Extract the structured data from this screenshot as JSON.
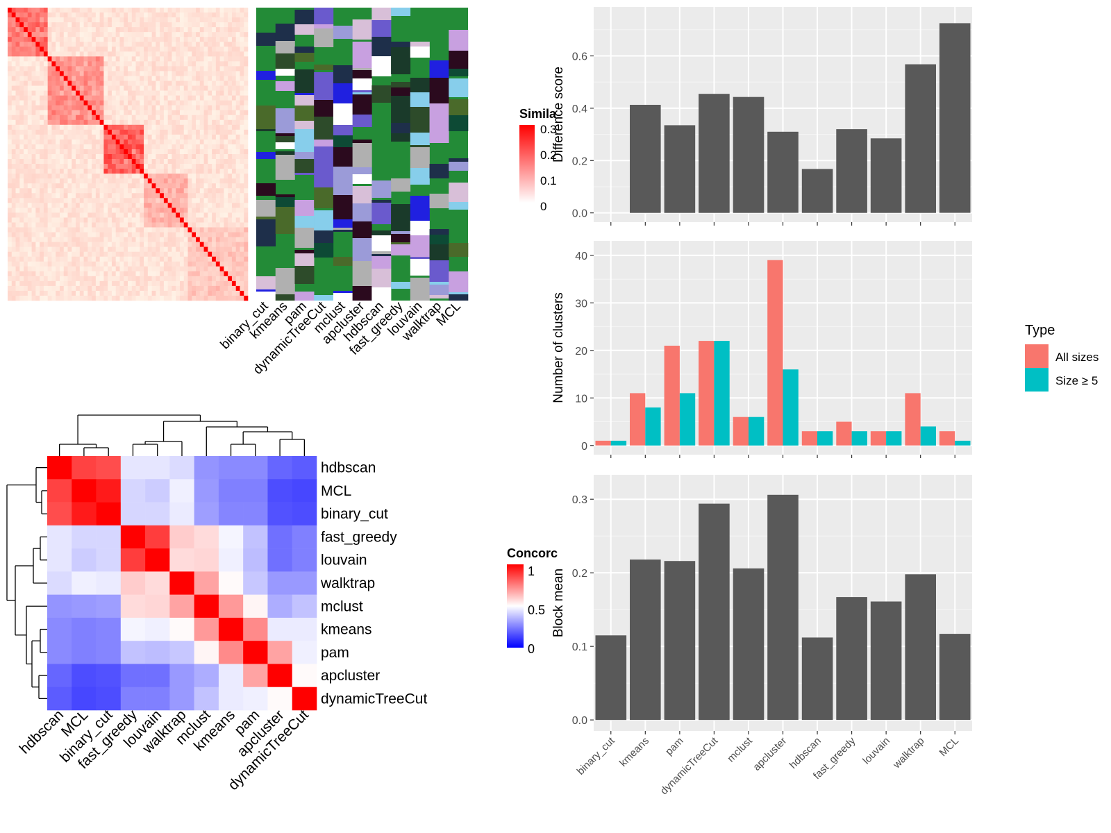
{
  "colors": {
    "panel_bg": "#ebebeb",
    "grid": "#ffffff",
    "bar_gray": "#595959",
    "all_sizes": "#f8766d",
    "size_ge5": "#00bfc4",
    "sim_high": "#ff0000",
    "conc_low": "#0000ff",
    "conc_high": "#ff0000",
    "track_bg": "#238b37"
  },
  "similarity_heatmap": {
    "legend_title": "Simila",
    "legend_ticks": [
      "0.3",
      "0.2",
      "0.1",
      "0"
    ]
  },
  "cluster_tracks": {
    "labels": [
      "binary_cut",
      "kmeans",
      "pam",
      "dynamicTreeCut",
      "mclust",
      "apcluster",
      "hdbscan",
      "fast_greedy",
      "louvain",
      "walktrap",
      "MCL"
    ]
  },
  "concordance_heatmap": {
    "legend_title": "Concorc",
    "legend_ticks": [
      "1",
      "0.5",
      "0"
    ],
    "row_labels": [
      "hdbscan",
      "MCL",
      "binary_cut",
      "fast_greedy",
      "louvain",
      "walktrap",
      "mclust",
      "kmeans",
      "pam",
      "apcluster",
      "dynamicTreeCut"
    ],
    "col_labels": [
      "hdbscan",
      "MCL",
      "binary_cut",
      "fast_greedy",
      "louvain",
      "walktrap",
      "mclust",
      "kmeans",
      "pam",
      "apcluster",
      "dynamicTreeCut"
    ],
    "matrix": [
      [
        1.0,
        0.87,
        0.85,
        0.45,
        0.45,
        0.43,
        0.29,
        0.27,
        0.27,
        0.2,
        0.18
      ],
      [
        0.87,
        1.0,
        0.95,
        0.42,
        0.4,
        0.47,
        0.3,
        0.25,
        0.25,
        0.15,
        0.14
      ],
      [
        0.85,
        0.95,
        1.0,
        0.42,
        0.42,
        0.46,
        0.31,
        0.26,
        0.26,
        0.16,
        0.15
      ],
      [
        0.45,
        0.42,
        0.42,
        1.0,
        0.88,
        0.6,
        0.57,
        0.48,
        0.38,
        0.22,
        0.25
      ],
      [
        0.45,
        0.4,
        0.42,
        0.88,
        1.0,
        0.57,
        0.58,
        0.47,
        0.37,
        0.22,
        0.25
      ],
      [
        0.43,
        0.47,
        0.46,
        0.6,
        0.57,
        1.0,
        0.68,
        0.51,
        0.39,
        0.3,
        0.3
      ],
      [
        0.29,
        0.3,
        0.31,
        0.57,
        0.58,
        0.68,
        1.0,
        0.7,
        0.52,
        0.34,
        0.38
      ],
      [
        0.27,
        0.25,
        0.26,
        0.48,
        0.47,
        0.51,
        0.7,
        1.0,
        0.73,
        0.46,
        0.46
      ],
      [
        0.27,
        0.25,
        0.26,
        0.38,
        0.37,
        0.39,
        0.52,
        0.73,
        1.0,
        0.68,
        0.47
      ],
      [
        0.2,
        0.15,
        0.16,
        0.22,
        0.22,
        0.3,
        0.34,
        0.46,
        0.68,
        1.0,
        0.51
      ],
      [
        0.18,
        0.14,
        0.15,
        0.25,
        0.25,
        0.3,
        0.38,
        0.46,
        0.47,
        0.51,
        1.0
      ]
    ]
  },
  "chart_data": [
    {
      "type": "bar",
      "ylabel": "Difference score",
      "categories": [
        "binary_cut",
        "kmeans",
        "pam",
        "dynamicTreeCut",
        "mclust",
        "apcluster",
        "hdbscan",
        "fast_greedy",
        "louvain",
        "walktrap",
        "MCL"
      ],
      "values": [
        0.0,
        0.413,
        0.335,
        0.455,
        0.443,
        0.31,
        0.168,
        0.32,
        0.285,
        0.568,
        0.725
      ],
      "ylim": [
        0,
        0.75
      ],
      "yticks": [
        "0.0",
        "0.2",
        "0.4",
        "0.6"
      ],
      "ytick_values": [
        0,
        0.2,
        0.4,
        0.6
      ]
    },
    {
      "type": "bar",
      "ylabel": "Number of clusters",
      "categories": [
        "binary_cut",
        "kmeans",
        "pam",
        "dynamicTreeCut",
        "mclust",
        "apcluster",
        "hdbscan",
        "fast_greedy",
        "louvain",
        "walktrap",
        "MCL"
      ],
      "legend_title": "Type",
      "legend_placement": "right",
      "series": [
        {
          "name": "All sizes",
          "values": [
            1,
            11,
            21,
            22,
            6,
            39,
            3,
            5,
            3,
            11,
            3
          ]
        },
        {
          "name": "Size ≥ 5",
          "values": [
            1,
            8,
            11,
            22,
            6,
            16,
            3,
            3,
            3,
            4,
            1
          ]
        }
      ],
      "ylim": [
        0,
        41
      ],
      "yticks": [
        "0",
        "10",
        "20",
        "30",
        "40"
      ],
      "ytick_values": [
        0,
        10,
        20,
        30,
        40
      ]
    },
    {
      "type": "bar",
      "ylabel": "Block mean",
      "categories": [
        "binary_cut",
        "kmeans",
        "pam",
        "dynamicTreeCut",
        "mclust",
        "apcluster",
        "hdbscan",
        "fast_greedy",
        "louvain",
        "walktrap",
        "MCL"
      ],
      "values": [
        0.115,
        0.218,
        0.216,
        0.294,
        0.206,
        0.306,
        0.112,
        0.167,
        0.161,
        0.198,
        0.117
      ],
      "ylim": [
        0,
        0.32
      ],
      "yticks": [
        "0.0",
        "0.1",
        "0.2",
        "0.3"
      ],
      "ytick_values": [
        0,
        0.1,
        0.2,
        0.3
      ]
    }
  ]
}
